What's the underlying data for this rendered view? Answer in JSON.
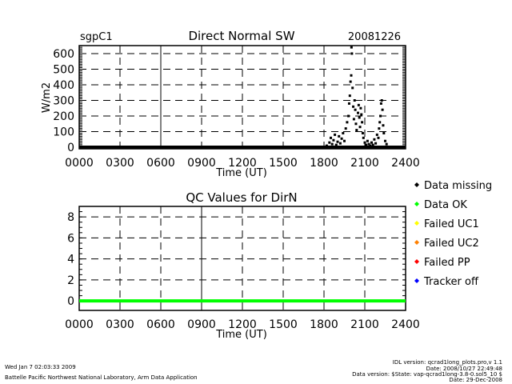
{
  "chart_data": [
    {
      "type": "scatter",
      "title": "Direct Normal SW",
      "site": "sgpC1",
      "date": "20081226",
      "xlabel": "Time (UT)",
      "ylabel": "W/m2",
      "xlim": [
        0,
        24
      ],
      "ylim": [
        -10,
        651
      ],
      "xticks": [
        "0000",
        "0300",
        "0600",
        "0900",
        "1200",
        "1500",
        "1800",
        "2100",
        "2400"
      ],
      "yticks": [
        "0",
        "100",
        "200",
        "300",
        "400",
        "500",
        "600"
      ],
      "ytick_values": [
        0,
        100,
        200,
        300,
        400,
        500,
        600
      ],
      "grid": true,
      "marker_color": "#000000",
      "baseline_value": 0,
      "points": [
        [
          18.2,
          10
        ],
        [
          18.4,
          30
        ],
        [
          18.5,
          60
        ],
        [
          18.6,
          20
        ],
        [
          18.7,
          45
        ],
        [
          18.8,
          80
        ],
        [
          18.9,
          15
        ],
        [
          19.0,
          35
        ],
        [
          19.1,
          70
        ],
        [
          19.2,
          25
        ],
        [
          19.3,
          55
        ],
        [
          19.4,
          90
        ],
        [
          19.5,
          40
        ],
        [
          19.6,
          120
        ],
        [
          19.7,
          160
        ],
        [
          19.8,
          200
        ],
        [
          19.85,
          280
        ],
        [
          19.9,
          330
        ],
        [
          19.95,
          420
        ],
        [
          20.0,
          460
        ],
        [
          20.02,
          640
        ],
        [
          20.05,
          600
        ],
        [
          20.1,
          380
        ],
        [
          20.15,
          260
        ],
        [
          20.2,
          180
        ],
        [
          20.25,
          300
        ],
        [
          20.3,
          240
        ],
        [
          20.35,
          150
        ],
        [
          20.4,
          110
        ],
        [
          20.5,
          220
        ],
        [
          20.55,
          270
        ],
        [
          20.6,
          190
        ],
        [
          20.65,
          130
        ],
        [
          20.7,
          250
        ],
        [
          20.75,
          210
        ],
        [
          20.8,
          160
        ],
        [
          20.85,
          90
        ],
        [
          20.9,
          60
        ],
        [
          21.0,
          30
        ],
        [
          21.1,
          15
        ],
        [
          21.2,
          40
        ],
        [
          21.3,
          20
        ],
        [
          21.4,
          10
        ],
        [
          21.5,
          30
        ],
        [
          21.6,
          15
        ],
        [
          21.7,
          50
        ],
        [
          21.8,
          25
        ],
        [
          21.9,
          80
        ],
        [
          22.0,
          60
        ],
        [
          22.05,
          120
        ],
        [
          22.1,
          160
        ],
        [
          22.15,
          200
        ],
        [
          22.2,
          280
        ],
        [
          22.25,
          300
        ],
        [
          22.3,
          240
        ],
        [
          22.35,
          140
        ],
        [
          22.4,
          90
        ],
        [
          22.5,
          40
        ],
        [
          22.6,
          20
        ]
      ]
    },
    {
      "type": "line",
      "title": "QC Values for DirN",
      "xlabel": "Time (UT)",
      "xlim": [
        0,
        24
      ],
      "ylim": [
        -0.9,
        9
      ],
      "xticks": [
        "0000",
        "0300",
        "0600",
        "0900",
        "1200",
        "1500",
        "1800",
        "2100",
        "2400"
      ],
      "yticks": [
        "0",
        "2",
        "4",
        "6",
        "8"
      ],
      "ytick_values": [
        0,
        2,
        4,
        6,
        8
      ],
      "grid": true,
      "series": [
        {
          "name": "Data OK",
          "value": 0,
          "color": "#00ff00"
        }
      ],
      "legend": {
        "placement": "right",
        "entries": [
          {
            "label": "Data missing",
            "color": "#000000"
          },
          {
            "label": "Data OK",
            "color": "#00ff00"
          },
          {
            "label": "Failed UC1",
            "color": "#ffff00"
          },
          {
            "label": "Failed UC2",
            "color": "#ff8000"
          },
          {
            "label": "Failed PP",
            "color": "#ff0000"
          },
          {
            "label": "Tracker off",
            "color": "#0000ff"
          }
        ]
      }
    }
  ],
  "footer": {
    "timestamp": "Wed Jan  7 02:03:33 2009",
    "organization": "Battelle Pacific Northwest National Laboratory, Arm Data Application",
    "idl_version": "IDL version: qcrad1long_plots.pro,v 1.1",
    "idl_date": "Date: 2008/10/27 22:49:48",
    "data_version": "Data version: $State: vap-qcrad1long-3.8-0.sol5_10 $",
    "data_date": "Date: 29-Dec-2008"
  }
}
